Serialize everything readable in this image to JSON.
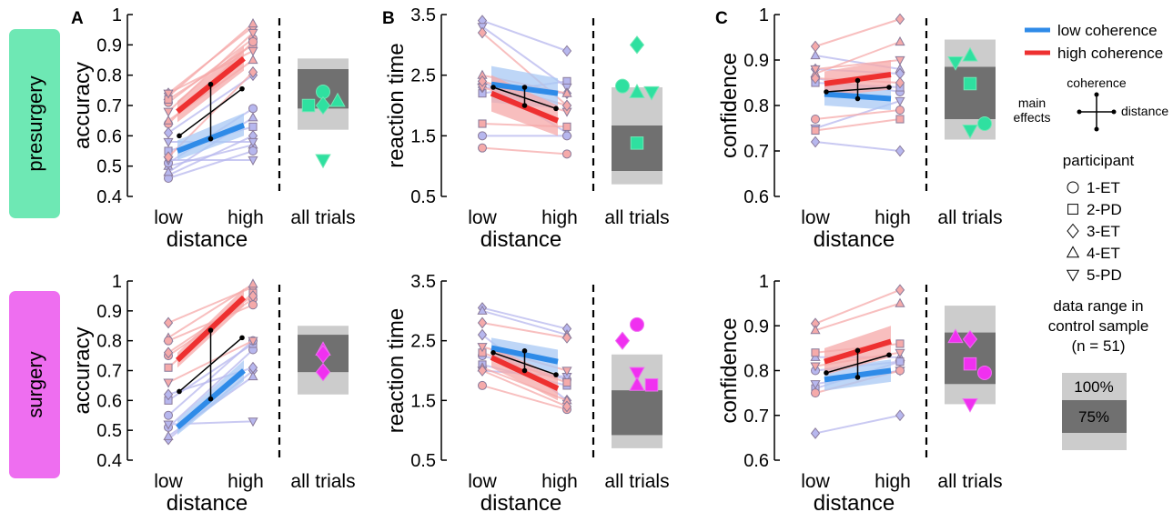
{
  "row_labels": [
    "presurgery",
    "surgery"
  ],
  "row_colors": [
    "#6ee8b4",
    "#ee6ef0"
  ],
  "panel_letters": [
    "A",
    "B",
    "C"
  ],
  "legend": {
    "low_coherence": "low coherence",
    "high_coherence": "high coherence",
    "low_color": "#2f8be8",
    "high_color": "#ee3030",
    "coherence_axis": "coherence",
    "main_effects_1": "main",
    "main_effects_2": "effects",
    "distance_axis": "distance",
    "participant_title": "participant",
    "participants": [
      {
        "marker": "circle",
        "label": "1-ET"
      },
      {
        "marker": "square",
        "label": "2-PD"
      },
      {
        "marker": "diamond",
        "label": "3-ET"
      },
      {
        "marker": "triangle-up",
        "label": "4-ET"
      },
      {
        "marker": "triangle-down",
        "label": "5-PD"
      }
    ],
    "range_title_1": "data range in",
    "range_title_2": "control sample",
    "range_title_3": "(n = 51)",
    "range_100": "100%",
    "range_75": "75%"
  },
  "chart_data": [
    {
      "type": "line",
      "row": "presurgery",
      "panel": "A",
      "ylabel": "accuracy",
      "xlabel": "distance",
      "categories": [
        "low",
        "high"
      ],
      "aux_category": "all trials",
      "ylim": [
        0.4,
        1.0
      ],
      "yticks": [
        "0.4",
        "0.5",
        "0.6",
        "0.7",
        "0.8",
        "0.9",
        "1"
      ],
      "ytick_values": [
        0.4,
        0.5,
        0.6,
        0.7,
        0.8,
        0.9,
        1.0
      ],
      "low_coherence": {
        "values": [
          0.55,
          0.635
        ],
        "band": [
          [
            0.52,
            0.585
          ],
          [
            0.6,
            0.675
          ]
        ]
      },
      "high_coherence": {
        "values": [
          0.68,
          0.855
        ],
        "band": [
          [
            0.645,
            0.715
          ],
          [
            0.815,
            0.895
          ]
        ]
      },
      "distance_effect": [
        0.6,
        0.755
      ],
      "coherence_effect": [
        0.59,
        0.77
      ],
      "participants_low": [
        [
          0.47,
          0.6
        ],
        [
          0.5,
          0.57
        ],
        [
          0.46,
          0.55
        ],
        [
          0.55,
          0.63
        ],
        [
          0.58,
          0.58
        ],
        [
          0.61,
          0.8
        ],
        [
          0.51,
          0.69
        ],
        [
          0.48,
          0.66
        ],
        [
          0.52,
          0.52
        ]
      ],
      "participants_high": [
        [
          0.74,
          0.96
        ],
        [
          0.73,
          0.97
        ],
        [
          0.71,
          0.92
        ],
        [
          0.72,
          0.9
        ],
        [
          0.68,
          0.94
        ],
        [
          0.53,
          0.81
        ],
        [
          0.64,
          0.91
        ],
        [
          0.65,
          0.85
        ],
        [
          0.74,
          0.88
        ]
      ],
      "control_range": {
        "full": [
          0.62,
          0.855
        ],
        "iqr": [
          0.69,
          0.82
        ]
      },
      "all_trials": [
        {
          "marker": "circle",
          "value": 0.745
        },
        {
          "marker": "square",
          "value": 0.7
        },
        {
          "marker": "diamond",
          "value": 0.7
        },
        {
          "marker": "triangle-up",
          "value": 0.715
        },
        {
          "marker": "triangle-down",
          "value": 0.52
        }
      ]
    },
    {
      "type": "line",
      "row": "presurgery",
      "panel": "B",
      "ylabel": "reaction time",
      "xlabel": "distance",
      "categories": [
        "low",
        "high"
      ],
      "aux_category": "all trials",
      "ylim": [
        0.5,
        3.5
      ],
      "yticks": [
        "0.5",
        "1.5",
        "2.5",
        "3.5"
      ],
      "ytick_values": [
        0.5,
        1.5,
        2.5,
        3.5
      ],
      "low_coherence": {
        "values": [
          2.35,
          2.2
        ],
        "band": [
          [
            2.05,
            2.65
          ],
          [
            1.95,
            2.45
          ]
        ]
      },
      "high_coherence": {
        "values": [
          2.2,
          1.75
        ],
        "band": [
          [
            1.9,
            2.5
          ],
          [
            1.5,
            2.0
          ]
        ]
      },
      "distance_effect": [
        2.3,
        1.95
      ],
      "coherence_effect": [
        2.0,
        2.3
      ],
      "participants_low": [
        [
          3.4,
          2.9
        ],
        [
          2.4,
          1.55
        ],
        [
          1.5,
          1.5
        ],
        [
          2.2,
          2.4
        ],
        [
          3.3,
          2.3
        ],
        [
          2.3,
          2.2
        ]
      ],
      "participants_high": [
        [
          3.2,
          2.0
        ],
        [
          2.5,
          2.2
        ],
        [
          1.3,
          1.2
        ],
        [
          1.7,
          1.65
        ],
        [
          2.3,
          1.9
        ],
        [
          2.4,
          2.0
        ]
      ],
      "control_range": {
        "full": [
          0.7,
          2.3
        ],
        "iqr": [
          0.92,
          1.67
        ]
      },
      "all_trials": [
        {
          "marker": "diamond",
          "value": 3.0
        },
        {
          "marker": "circle",
          "value": 2.32
        },
        {
          "marker": "triangle-up",
          "value": 2.22
        },
        {
          "marker": "triangle-down",
          "value": 2.22
        },
        {
          "marker": "square",
          "value": 1.38
        }
      ]
    },
    {
      "type": "line",
      "row": "presurgery",
      "panel": "C",
      "ylabel": "confidence",
      "xlabel": "distance",
      "categories": [
        "low",
        "high"
      ],
      "aux_category": "all trials",
      "ylim": [
        0.6,
        1.0
      ],
      "yticks": [
        "0.6",
        "0.7",
        "0.8",
        "0.9",
        "1"
      ],
      "ytick_values": [
        0.6,
        0.7,
        0.8,
        0.9,
        1.0
      ],
      "low_coherence": {
        "values": [
          0.825,
          0.815
        ],
        "band": [
          [
            0.8,
            0.85
          ],
          [
            0.79,
            0.84
          ]
        ]
      },
      "high_coherence": {
        "values": [
          0.848,
          0.868
        ],
        "band": [
          [
            0.82,
            0.875
          ],
          [
            0.835,
            0.9
          ]
        ]
      },
      "distance_effect": [
        0.83,
        0.84
      ],
      "coherence_effect": [
        0.815,
        0.855
      ],
      "participants_low": [
        [
          0.72,
          0.7
        ],
        [
          0.91,
          0.88
        ],
        [
          0.86,
          0.83
        ],
        [
          0.85,
          0.84
        ],
        [
          0.75,
          0.81
        ],
        [
          0.88,
          0.87
        ]
      ],
      "participants_high": [
        [
          0.93,
          0.99
        ],
        [
          0.87,
          0.94
        ],
        [
          0.77,
          0.79
        ],
        [
          0.745,
          0.77
        ],
        [
          0.88,
          0.9
        ],
        [
          0.86,
          0.85
        ]
      ],
      "control_range": {
        "full": [
          0.725,
          0.945
        ],
        "iqr": [
          0.77,
          0.885
        ]
      },
      "all_trials": [
        {
          "marker": "triangle-up",
          "value": 0.91
        },
        {
          "marker": "triangle-down",
          "value": 0.895
        },
        {
          "marker": "square",
          "value": 0.848
        },
        {
          "marker": "circle",
          "value": 0.76
        },
        {
          "marker": "triangle-down",
          "value": 0.745
        }
      ]
    },
    {
      "type": "line",
      "row": "surgery",
      "panel": "A",
      "ylabel": "accuracy",
      "xlabel": "distance",
      "categories": [
        "low",
        "high"
      ],
      "aux_category": "all trials",
      "ylim": [
        0.4,
        1.0
      ],
      "yticks": [
        "0.4",
        "0.5",
        "0.6",
        "0.7",
        "0.8",
        "0.9",
        "1"
      ],
      "ytick_values": [
        0.4,
        0.5,
        0.6,
        0.7,
        0.8,
        0.9,
        1.0
      ],
      "low_coherence": {
        "values": [
          0.51,
          0.7
        ],
        "band": [
          [
            0.485,
            0.535
          ],
          [
            0.665,
            0.735
          ]
        ]
      },
      "high_coherence": {
        "values": [
          0.735,
          0.945
        ],
        "band": [
          [
            0.71,
            0.76
          ],
          [
            0.915,
            0.975
          ]
        ]
      },
      "distance_effect": [
        0.63,
        0.81
      ],
      "coherence_effect": [
        0.605,
        0.835
      ],
      "participants_low": [
        [
          0.47,
          0.7
        ],
        [
          0.48,
          0.68
        ],
        [
          0.51,
          0.77
        ],
        [
          0.6,
          0.79
        ],
        [
          0.52,
          0.53
        ],
        [
          0.62,
          0.71
        ],
        [
          0.55,
          0.8
        ]
      ],
      "participants_high": [
        [
          0.86,
          0.98
        ],
        [
          0.81,
          0.99
        ],
        [
          0.75,
          0.94
        ],
        [
          0.71,
          0.96
        ],
        [
          0.66,
          0.8
        ],
        [
          0.76,
          0.95
        ],
        [
          0.8,
          0.92
        ]
      ],
      "control_range": {
        "full": [
          0.62,
          0.85
        ],
        "iqr": [
          0.695,
          0.82
        ]
      },
      "all_trials": [
        {
          "marker": "triangle-up",
          "value": 0.77
        },
        {
          "marker": "diamond",
          "value": 0.755
        },
        {
          "marker": "diamond",
          "value": 0.695
        }
      ]
    },
    {
      "type": "line",
      "row": "surgery",
      "panel": "B",
      "ylabel": "reaction time",
      "xlabel": "distance",
      "categories": [
        "low",
        "high"
      ],
      "aux_category": "all trials",
      "ylim": [
        0.5,
        3.5
      ],
      "yticks": [
        "0.5",
        "1.5",
        "2.5",
        "3.5"
      ],
      "ytick_values": [
        0.5,
        1.5,
        2.5,
        3.5
      ],
      "low_coherence": {
        "values": [
          2.38,
          2.15
        ],
        "band": [
          [
            2.2,
            2.55
          ],
          [
            1.95,
            2.35
          ]
        ]
      },
      "high_coherence": {
        "values": [
          2.22,
          1.7
        ],
        "band": [
          [
            2.05,
            2.4
          ],
          [
            1.5,
            1.9
          ]
        ]
      },
      "distance_effect": [
        2.3,
        1.93
      ],
      "coherence_effect": [
        2.0,
        2.33
      ],
      "participants_low": [
        [
          3.05,
          2.7
        ],
        [
          3.0,
          2.6
        ],
        [
          2.25,
          1.85
        ],
        [
          2.1,
          1.75
        ],
        [
          2.0,
          1.9
        ],
        [
          2.6,
          1.5
        ]
      ],
      "participants_high": [
        [
          2.8,
          2.55
        ],
        [
          2.05,
          1.5
        ],
        [
          1.75,
          1.35
        ],
        [
          2.3,
          1.8
        ],
        [
          2.4,
          2.0
        ],
        [
          2.0,
          1.4
        ]
      ],
      "control_range": {
        "full": [
          0.7,
          2.27
        ],
        "iqr": [
          0.92,
          1.67
        ]
      },
      "all_trials": [
        {
          "marker": "circle",
          "value": 2.77
        },
        {
          "marker": "diamond",
          "value": 2.5
        },
        {
          "marker": "triangle-down",
          "value": 1.96
        },
        {
          "marker": "square",
          "value": 1.76
        },
        {
          "marker": "triangle-up",
          "value": 1.76
        }
      ]
    },
    {
      "type": "line",
      "row": "surgery",
      "panel": "C",
      "ylabel": "confidence",
      "xlabel": "distance",
      "categories": [
        "low",
        "high"
      ],
      "aux_category": "all trials",
      "ylim": [
        0.6,
        1.0
      ],
      "yticks": [
        "0.6",
        "0.7",
        "0.8",
        "0.9",
        "1"
      ],
      "ytick_values": [
        0.6,
        0.7,
        0.8,
        0.9,
        1.0
      ],
      "low_coherence": {
        "values": [
          0.78,
          0.8
        ],
        "band": [
          [
            0.755,
            0.805
          ],
          [
            0.775,
            0.825
          ]
        ]
      },
      "high_coherence": {
        "values": [
          0.82,
          0.865
        ],
        "band": [
          [
            0.79,
            0.85
          ],
          [
            0.83,
            0.9
          ]
        ]
      },
      "distance_effect": [
        0.795,
        0.835
      ],
      "coherence_effect": [
        0.785,
        0.845
      ],
      "participants_low": [
        [
          0.66,
          0.7
        ],
        [
          0.83,
          0.83
        ],
        [
          0.8,
          0.82
        ],
        [
          0.76,
          0.82
        ],
        [
          0.77,
          0.8
        ]
      ],
      "participants_high": [
        [
          0.905,
          0.98
        ],
        [
          0.89,
          0.95
        ],
        [
          0.75,
          0.8
        ],
        [
          0.84,
          0.86
        ],
        [
          0.81,
          0.84
        ]
      ],
      "control_range": {
        "full": [
          0.725,
          0.945
        ],
        "iqr": [
          0.77,
          0.885
        ]
      },
      "all_trials": [
        {
          "marker": "diamond",
          "value": 0.87
        },
        {
          "marker": "triangle-up",
          "value": 0.875
        },
        {
          "marker": "square",
          "value": 0.815
        },
        {
          "marker": "circle",
          "value": 0.795
        },
        {
          "marker": "triangle-down",
          "value": 0.725
        }
      ]
    }
  ]
}
